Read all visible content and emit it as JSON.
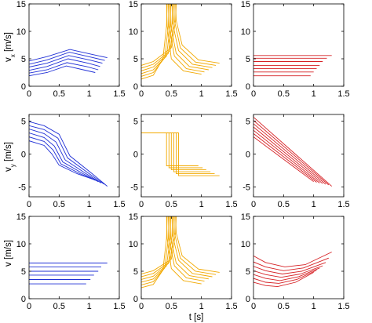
{
  "colors": {
    "col1": "#1f2fd6",
    "col2": "#f2a900",
    "col3": "#d62024"
  },
  "ylabels": {
    "row1": "v",
    "row1_sub": "x",
    "row1_unit": " [m/s]",
    "row2": "v",
    "row2_sub": "y",
    "row2_unit": " [m/s]",
    "row3": "v [m/s]"
  },
  "xlabel": "t [s]",
  "chart_data": [
    {
      "type": "line",
      "id": "vx-col1",
      "row": 0,
      "col": 0,
      "color": "#1f2fd6",
      "xlim": [
        0,
        1.5
      ],
      "ylim": [
        0,
        15
      ],
      "xticks": [
        "0",
        "0.5",
        "1",
        "1.5"
      ],
      "yticks": [
        "0",
        "5",
        "10",
        "15"
      ],
      "series": [
        {
          "x": [
            0,
            0.3,
            0.62,
            0.9,
            1.1
          ],
          "y": [
            1.9,
            2.5,
            3.7,
            3.0,
            2.5
          ]
        },
        {
          "x": [
            0,
            0.3,
            0.63,
            0.95,
            1.15
          ],
          "y": [
            2.4,
            3.0,
            4.3,
            3.6,
            3.0
          ]
        },
        {
          "x": [
            0,
            0.3,
            0.65,
            0.98,
            1.18
          ],
          "y": [
            2.9,
            3.6,
            5.0,
            4.2,
            3.6
          ]
        },
        {
          "x": [
            0,
            0.3,
            0.66,
            1.0,
            1.22
          ],
          "y": [
            3.5,
            4.2,
            5.6,
            4.8,
            4.2
          ]
        },
        {
          "x": [
            0,
            0.3,
            0.67,
            1.03,
            1.26
          ],
          "y": [
            4.0,
            4.8,
            6.2,
            5.3,
            4.7
          ]
        },
        {
          "x": [
            0,
            0.3,
            0.68,
            1.05,
            1.3
          ],
          "y": [
            4.6,
            5.4,
            6.7,
            5.8,
            5.2
          ]
        }
      ]
    },
    {
      "type": "line",
      "id": "vx-col2",
      "row": 0,
      "col": 1,
      "color": "#f2a900",
      "xlim": [
        0,
        1.5
      ],
      "ylim": [
        0,
        15
      ],
      "xticks": [
        "0",
        "0.5",
        "1",
        "1.5"
      ],
      "yticks": [
        "0",
        "5",
        "10",
        "15"
      ],
      "series": [
        {
          "x": [
            0,
            0.2,
            0.36,
            0.42,
            0.43
          ],
          "y": [
            1.3,
            2.0,
            5.0,
            11.0,
            15.0
          ]
        },
        {
          "x": [
            0,
            0.2,
            0.39,
            0.45,
            0.46
          ],
          "y": [
            1.8,
            2.5,
            5.2,
            11.0,
            15.0
          ]
        },
        {
          "x": [
            0,
            0.2,
            0.42,
            0.48,
            0.49
          ],
          "y": [
            2.3,
            3.0,
            5.5,
            11.0,
            15.0
          ]
        },
        {
          "x": [
            0,
            0.2,
            0.45,
            0.51,
            0.52
          ],
          "y": [
            2.8,
            3.5,
            6.0,
            11.5,
            15.0
          ]
        },
        {
          "x": [
            0,
            0.2,
            0.48,
            0.54,
            0.55
          ],
          "y": [
            3.3,
            4.0,
            6.5,
            12.0,
            15.0
          ]
        },
        {
          "x": [
            0,
            0.2,
            0.5,
            0.57,
            0.58
          ],
          "y": [
            3.8,
            4.5,
            7.0,
            12.0,
            15.0
          ]
        },
        {
          "x": [
            0.42,
            0.43,
            0.5,
            0.7,
            1.0
          ],
          "y": [
            15.0,
            11.0,
            5.0,
            2.8,
            2.2
          ]
        },
        {
          "x": [
            0.45,
            0.46,
            0.55,
            0.75,
            1.05
          ],
          "y": [
            15.0,
            11.0,
            5.5,
            3.2,
            2.6
          ]
        },
        {
          "x": [
            0.48,
            0.49,
            0.58,
            0.8,
            1.12
          ],
          "y": [
            15.0,
            11.0,
            6.0,
            3.6,
            3.0
          ]
        },
        {
          "x": [
            0.51,
            0.52,
            0.62,
            0.85,
            1.18
          ],
          "y": [
            15.0,
            11.5,
            6.5,
            4.0,
            3.4
          ]
        },
        {
          "x": [
            0.54,
            0.55,
            0.65,
            0.9,
            1.24
          ],
          "y": [
            15.0,
            12.0,
            7.0,
            4.4,
            3.8
          ]
        },
        {
          "x": [
            0.57,
            0.58,
            0.68,
            0.95,
            1.3
          ],
          "y": [
            15.0,
            12.0,
            7.5,
            4.8,
            4.2
          ]
        }
      ]
    },
    {
      "type": "line",
      "id": "vx-col3",
      "row": 0,
      "col": 2,
      "color": "#d62024",
      "xlim": [
        0,
        1.5
      ],
      "ylim": [
        0,
        15
      ],
      "xticks": [
        "0",
        "0.5",
        "1",
        "1.5"
      ],
      "yticks": [
        "0",
        "5",
        "10",
        "15"
      ],
      "series": [
        {
          "x": [
            0,
            0.95
          ],
          "y": [
            1.9,
            1.9
          ]
        },
        {
          "x": [
            0,
            1.0
          ],
          "y": [
            2.6,
            2.6
          ]
        },
        {
          "x": [
            0,
            1.05
          ],
          "y": [
            3.2,
            3.2
          ]
        },
        {
          "x": [
            0,
            1.1
          ],
          "y": [
            3.8,
            3.8
          ]
        },
        {
          "x": [
            0,
            1.15
          ],
          "y": [
            4.5,
            4.5
          ]
        },
        {
          "x": [
            0,
            1.22
          ],
          "y": [
            5.1,
            5.1
          ]
        },
        {
          "x": [
            0,
            1.3
          ],
          "y": [
            5.6,
            5.6
          ]
        }
      ]
    },
    {
      "type": "line",
      "id": "vy-col1",
      "row": 1,
      "col": 0,
      "color": "#1f2fd6",
      "xlim": [
        0,
        1.5
      ],
      "ylim": [
        -6.5,
        6
      ],
      "xticks": [
        "0",
        "0.5",
        "1",
        "1.5"
      ],
      "yticks": [
        "-5",
        "0",
        "5"
      ],
      "series": [
        {
          "x": [
            0,
            0.25,
            0.38,
            0.5,
            0.8,
            1.05
          ],
          "y": [
            2.0,
            1.3,
            0.0,
            -1.7,
            -3.0,
            -3.8
          ]
        },
        {
          "x": [
            0,
            0.25,
            0.4,
            0.53,
            0.85,
            1.1
          ],
          "y": [
            2.6,
            1.9,
            0.6,
            -1.5,
            -3.0,
            -4.0
          ]
        },
        {
          "x": [
            0,
            0.25,
            0.42,
            0.56,
            0.9,
            1.15
          ],
          "y": [
            3.2,
            2.5,
            1.2,
            -1.2,
            -3.0,
            -4.2
          ]
        },
        {
          "x": [
            0,
            0.25,
            0.45,
            0.6,
            0.95,
            1.2
          ],
          "y": [
            3.8,
            3.1,
            1.8,
            -0.9,
            -3.0,
            -4.4
          ]
        },
        {
          "x": [
            0,
            0.25,
            0.48,
            0.64,
            1.0,
            1.25
          ],
          "y": [
            4.3,
            3.7,
            2.4,
            -0.6,
            -3.0,
            -4.6
          ]
        },
        {
          "x": [
            0,
            0.25,
            0.5,
            0.68,
            1.05,
            1.3
          ],
          "y": [
            4.9,
            4.3,
            3.0,
            -0.3,
            -3.0,
            -4.9
          ]
        }
      ]
    },
    {
      "type": "line",
      "id": "vy-col2",
      "row": 1,
      "col": 1,
      "color": "#f2a900",
      "xlim": [
        0,
        1.5
      ],
      "ylim": [
        -6.5,
        6
      ],
      "xticks": [
        "0",
        "0.5",
        "1",
        "1.5"
      ],
      "yticks": [
        "-5",
        "0",
        "5"
      ],
      "series": [
        {
          "x": [
            0,
            0.42,
            0.42,
            0.95
          ],
          "y": [
            3.2,
            3.2,
            -1.8,
            -1.8
          ]
        },
        {
          "x": [
            0,
            0.46,
            0.46,
            1.02
          ],
          "y": [
            3.2,
            3.2,
            -2.1,
            -2.1
          ]
        },
        {
          "x": [
            0,
            0.5,
            0.5,
            1.08
          ],
          "y": [
            3.2,
            3.2,
            -2.4,
            -2.4
          ]
        },
        {
          "x": [
            0,
            0.54,
            0.54,
            1.15
          ],
          "y": [
            3.2,
            3.2,
            -2.7,
            -2.7
          ]
        },
        {
          "x": [
            0,
            0.58,
            0.58,
            1.22
          ],
          "y": [
            3.2,
            3.2,
            -3.0,
            -3.0
          ]
        },
        {
          "x": [
            0,
            0.62,
            0.62,
            1.3
          ],
          "y": [
            3.2,
            3.2,
            -3.3,
            -3.3
          ]
        }
      ]
    },
    {
      "type": "line",
      "id": "vy-col3",
      "row": 1,
      "col": 2,
      "color": "#d62024",
      "xlim": [
        0,
        1.5
      ],
      "ylim": [
        -6.5,
        6
      ],
      "xticks": [
        "0",
        "0.5",
        "1",
        "1.5"
      ],
      "yticks": [
        "-5",
        "0",
        "5"
      ],
      "series": [
        {
          "x": [
            0,
            1.0
          ],
          "y": [
            2.6,
            -4.2
          ]
        },
        {
          "x": [
            0,
            1.05
          ],
          "y": [
            3.1,
            -4.3
          ]
        },
        {
          "x": [
            0,
            1.1
          ],
          "y": [
            3.6,
            -4.4
          ]
        },
        {
          "x": [
            0,
            1.15
          ],
          "y": [
            4.1,
            -4.5
          ]
        },
        {
          "x": [
            0,
            1.2
          ],
          "y": [
            4.6,
            -4.6
          ]
        },
        {
          "x": [
            0,
            1.25
          ],
          "y": [
            5.1,
            -4.7
          ]
        },
        {
          "x": [
            0,
            1.3
          ],
          "y": [
            5.6,
            -4.9
          ]
        }
      ]
    },
    {
      "type": "line",
      "id": "v-col1",
      "row": 2,
      "col": 0,
      "color": "#1f2fd6",
      "xlim": [
        0,
        1.5
      ],
      "ylim": [
        0,
        15
      ],
      "xticks": [
        "0",
        "0.5",
        "1",
        "1.5"
      ],
      "yticks": [
        "0",
        "5",
        "10",
        "15"
      ],
      "series": [
        {
          "x": [
            0,
            0.95
          ],
          "y": [
            2.7,
            2.7
          ]
        },
        {
          "x": [
            0,
            1.02
          ],
          "y": [
            3.5,
            3.5
          ]
        },
        {
          "x": [
            0,
            1.08
          ],
          "y": [
            4.3,
            4.3
          ]
        },
        {
          "x": [
            0,
            1.15
          ],
          "y": [
            5.0,
            5.0
          ]
        },
        {
          "x": [
            0,
            1.2
          ],
          "y": [
            5.8,
            5.8
          ]
        },
        {
          "x": [
            0,
            1.3
          ],
          "y": [
            6.5,
            6.5
          ]
        }
      ]
    },
    {
      "type": "line",
      "id": "v-col2",
      "row": 2,
      "col": 1,
      "color": "#f2a900",
      "xlim": [
        0,
        1.5
      ],
      "ylim": [
        0,
        15
      ],
      "xticks": [
        "0",
        "0.5",
        "1",
        "1.5"
      ],
      "yticks": [
        "0",
        "5",
        "10",
        "15"
      ],
      "series": [
        {
          "x": [
            0,
            0.2,
            0.36,
            0.42,
            0.43
          ],
          "y": [
            2.0,
            2.6,
            5.2,
            11.0,
            15.0
          ]
        },
        {
          "x": [
            0,
            0.2,
            0.39,
            0.45,
            0.46
          ],
          "y": [
            2.5,
            3.1,
            5.6,
            11.0,
            15.0
          ]
        },
        {
          "x": [
            0,
            0.2,
            0.42,
            0.48,
            0.49
          ],
          "y": [
            3.0,
            3.6,
            6.0,
            11.0,
            15.0
          ]
        },
        {
          "x": [
            0,
            0.2,
            0.45,
            0.51,
            0.52
          ],
          "y": [
            3.5,
            4.1,
            6.4,
            11.5,
            15.0
          ]
        },
        {
          "x": [
            0,
            0.2,
            0.48,
            0.54,
            0.55
          ],
          "y": [
            4.0,
            4.6,
            6.8,
            12.0,
            15.0
          ]
        },
        {
          "x": [
            0,
            0.2,
            0.5,
            0.57,
            0.58
          ],
          "y": [
            4.5,
            5.1,
            7.2,
            12.0,
            15.0
          ]
        },
        {
          "x": [
            0.42,
            0.43,
            0.5,
            0.7,
            1.0
          ],
          "y": [
            15.0,
            11.0,
            5.5,
            3.3,
            2.7
          ]
        },
        {
          "x": [
            0.45,
            0.46,
            0.55,
            0.75,
            1.05
          ],
          "y": [
            15.0,
            11.0,
            6.0,
            3.8,
            3.2
          ]
        },
        {
          "x": [
            0.48,
            0.49,
            0.58,
            0.8,
            1.12
          ],
          "y": [
            15.0,
            11.0,
            6.5,
            4.2,
            3.6
          ]
        },
        {
          "x": [
            0.51,
            0.52,
            0.62,
            0.85,
            1.18
          ],
          "y": [
            15.0,
            11.5,
            7.0,
            4.6,
            4.0
          ]
        },
        {
          "x": [
            0.54,
            0.55,
            0.65,
            0.9,
            1.24
          ],
          "y": [
            15.0,
            12.0,
            7.4,
            5.0,
            4.4
          ]
        },
        {
          "x": [
            0.57,
            0.58,
            0.68,
            0.95,
            1.3
          ],
          "y": [
            15.0,
            12.0,
            7.8,
            5.4,
            4.8
          ]
        }
      ]
    },
    {
      "type": "line",
      "id": "v-col3",
      "row": 2,
      "col": 2,
      "color": "#d62024",
      "xlim": [
        0,
        1.5
      ],
      "ylim": [
        0,
        15
      ],
      "xticks": [
        "0",
        "0.5",
        "1",
        "1.5"
      ],
      "yticks": [
        "0",
        "5",
        "10",
        "15"
      ],
      "series": [
        {
          "x": [
            0,
            0.2,
            0.4,
            0.7,
            1.0
          ],
          "y": [
            3.0,
            2.4,
            2.2,
            3.0,
            4.8
          ]
        },
        {
          "x": [
            0,
            0.2,
            0.42,
            0.72,
            1.05
          ],
          "y": [
            3.7,
            3.0,
            2.8,
            3.5,
            5.2
          ]
        },
        {
          "x": [
            0,
            0.2,
            0.44,
            0.75,
            1.1
          ],
          "y": [
            4.4,
            3.7,
            3.3,
            4.0,
            5.6
          ]
        },
        {
          "x": [
            0,
            0.2,
            0.46,
            0.78,
            1.15
          ],
          "y": [
            5.1,
            4.4,
            3.9,
            4.5,
            6.0
          ]
        },
        {
          "x": [
            0,
            0.2,
            0.48,
            0.8,
            1.2
          ],
          "y": [
            5.9,
            5.1,
            4.5,
            5.0,
            6.6
          ]
        },
        {
          "x": [
            0,
            0.2,
            0.5,
            0.83,
            1.25
          ],
          "y": [
            6.7,
            5.8,
            5.1,
            5.6,
            7.4
          ]
        },
        {
          "x": [
            0,
            0.2,
            0.52,
            0.86,
            1.3
          ],
          "y": [
            7.8,
            6.6,
            5.8,
            6.2,
            8.5
          ]
        }
      ]
    }
  ]
}
